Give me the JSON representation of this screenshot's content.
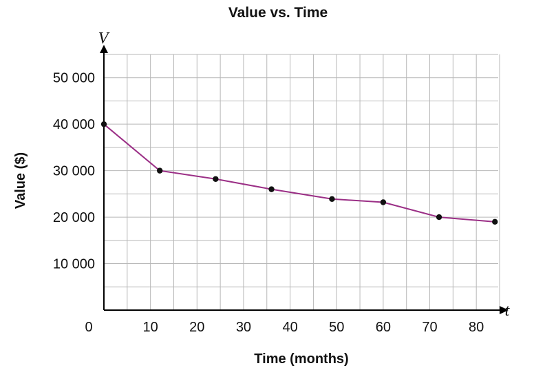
{
  "chart_data": {
    "type": "line",
    "title": "Value vs. Time",
    "xlabel": "Time (months)",
    "ylabel": "Value ($)",
    "x_axis_var": "t",
    "y_axis_var": "V",
    "xlim": [
      0,
      85
    ],
    "ylim": [
      0,
      55000
    ],
    "x_ticks": [
      0,
      10,
      20,
      30,
      40,
      50,
      60,
      70,
      80
    ],
    "x_tick_labels": [
      "0",
      "10",
      "20",
      "30",
      "40",
      "50",
      "60",
      "70",
      "80"
    ],
    "y_ticks": [
      10000,
      20000,
      30000,
      40000,
      50000
    ],
    "y_tick_labels": [
      "10 000",
      "20 000",
      "30 000",
      "40 000",
      "50 000"
    ],
    "grid": true,
    "grid_x_step": 5,
    "grid_y_step": 5000,
    "x": [
      0,
      12,
      24,
      36,
      49,
      60,
      72,
      84
    ],
    "series": [
      {
        "values": [
          40000,
          30000,
          28200,
          26000,
          23900,
          23200,
          20000,
          19000
        ]
      }
    ],
    "colors": {
      "line": "#9b2f86",
      "points": "#111111",
      "grid": "#b7b7b7",
      "axes": "#000000"
    }
  }
}
